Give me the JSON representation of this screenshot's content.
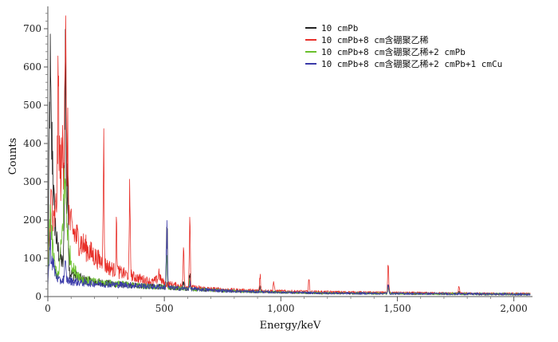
{
  "chart_data": {
    "type": "line",
    "xlabel": "Energy/keV",
    "ylabel": "Counts",
    "xlim": [
      0,
      2080
    ],
    "ylim": [
      0,
      750
    ],
    "x_ticks": [
      0,
      500,
      1000,
      1500,
      2000
    ],
    "x_tick_labels": [
      "0",
      "500",
      "1,000",
      "1,500",
      "2,000"
    ],
    "y_ticks": [
      0,
      100,
      200,
      300,
      400,
      500,
      600,
      700
    ],
    "y_tick_labels": [
      "0",
      "100",
      "200",
      "300",
      "400",
      "500",
      "600",
      "700"
    ],
    "grid": false,
    "legend_position": "top-right",
    "series": [
      {
        "name": "10 cmPb",
        "color": "#222222",
        "baseline": [
          [
            0,
            40
          ],
          [
            5,
            300
          ],
          [
            10,
            450
          ],
          [
            15,
            360
          ],
          [
            25,
            240
          ],
          [
            40,
            130
          ],
          [
            60,
            90
          ],
          [
            80,
            70
          ],
          [
            100,
            60
          ],
          [
            150,
            45
          ],
          [
            200,
            38
          ],
          [
            300,
            32
          ],
          [
            400,
            28
          ],
          [
            500,
            25
          ],
          [
            600,
            20
          ],
          [
            800,
            14
          ],
          [
            1000,
            11
          ],
          [
            1200,
            9
          ],
          [
            1500,
            8
          ],
          [
            1800,
            7
          ],
          [
            2050,
            6
          ]
        ],
        "peaks": [
          [
            10,
            575
          ],
          [
            20,
            380
          ],
          [
            75,
            630
          ],
          [
            85,
            280
          ],
          [
            511,
            205
          ],
          [
            583,
            45
          ],
          [
            609,
            55
          ],
          [
            911,
            25
          ],
          [
            1461,
            35
          ],
          [
            1765,
            15
          ]
        ]
      },
      {
        "name": "10 cmPb+8 cm含硼聚乙稀",
        "color": "#e8302a",
        "baseline": [
          [
            0,
            50
          ],
          [
            5,
            150
          ],
          [
            15,
            200
          ],
          [
            25,
            180
          ],
          [
            35,
            230
          ],
          [
            45,
            300
          ],
          [
            55,
            330
          ],
          [
            65,
            310
          ],
          [
            75,
            260
          ],
          [
            85,
            215
          ],
          [
            100,
            180
          ],
          [
            120,
            158
          ],
          [
            150,
            135
          ],
          [
            200,
            105
          ],
          [
            250,
            80
          ],
          [
            300,
            65
          ],
          [
            350,
            55
          ],
          [
            400,
            46
          ],
          [
            450,
            38
          ],
          [
            480,
            48
          ],
          [
            500,
            34
          ],
          [
            600,
            25
          ],
          [
            700,
            20
          ],
          [
            800,
            17
          ],
          [
            1000,
            14
          ],
          [
            1200,
            12
          ],
          [
            1500,
            10
          ],
          [
            1800,
            8
          ],
          [
            2050,
            7
          ]
        ],
        "peaks": [
          [
            15,
            260
          ],
          [
            45,
            530
          ],
          [
            65,
            405
          ],
          [
            75,
            710
          ],
          [
            85,
            390
          ],
          [
            239,
            400
          ],
          [
            295,
            175
          ],
          [
            352,
            265
          ],
          [
            477,
            65
          ],
          [
            583,
            135
          ],
          [
            609,
            180
          ],
          [
            911,
            60
          ],
          [
            969,
            40
          ],
          [
            1120,
            45
          ],
          [
            1461,
            80
          ],
          [
            1765,
            28
          ]
        ]
      },
      {
        "name": "10 cmPb+8 cm含硼聚乙稀+2 cmPb",
        "color": "#6abf2c",
        "baseline": [
          [
            0,
            40
          ],
          [
            5,
            120
          ],
          [
            10,
            180
          ],
          [
            20,
            130
          ],
          [
            30,
            80
          ],
          [
            45,
            50
          ],
          [
            60,
            150
          ],
          [
            70,
            260
          ],
          [
            80,
            220
          ],
          [
            90,
            120
          ],
          [
            110,
            70
          ],
          [
            150,
            45
          ],
          [
            200,
            38
          ],
          [
            300,
            33
          ],
          [
            400,
            28
          ],
          [
            500,
            24
          ],
          [
            600,
            20
          ],
          [
            800,
            14
          ],
          [
            1000,
            11
          ],
          [
            1200,
            9
          ],
          [
            1500,
            8
          ],
          [
            1800,
            7
          ],
          [
            2050,
            6
          ]
        ],
        "peaks": [
          [
            10,
            250
          ],
          [
            75,
            290
          ],
          [
            511,
            100
          ],
          [
            609,
            40
          ],
          [
            1461,
            25
          ]
        ]
      },
      {
        "name": "10 cmPb+8 cm含硼聚乙稀+2 cmPb+1 cmCu",
        "color": "#3a3aa8",
        "baseline": [
          [
            0,
            30
          ],
          [
            5,
            80
          ],
          [
            10,
            110
          ],
          [
            20,
            90
          ],
          [
            35,
            55
          ],
          [
            50,
            40
          ],
          [
            70,
            45
          ],
          [
            100,
            40
          ],
          [
            150,
            36
          ],
          [
            200,
            34
          ],
          [
            300,
            31
          ],
          [
            400,
            28
          ],
          [
            500,
            24
          ],
          [
            600,
            20
          ],
          [
            800,
            14
          ],
          [
            1000,
            11
          ],
          [
            1200,
            9
          ],
          [
            1500,
            8
          ],
          [
            1800,
            7
          ],
          [
            2050,
            6
          ]
        ],
        "peaks": [
          [
            10,
            140
          ],
          [
            75,
            80
          ],
          [
            511,
            180
          ],
          [
            609,
            35
          ],
          [
            1461,
            30
          ]
        ]
      }
    ]
  }
}
